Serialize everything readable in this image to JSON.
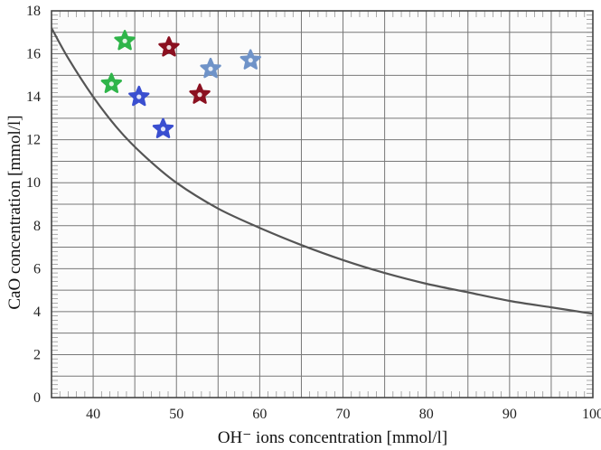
{
  "chart_data": {
    "type": "scatter",
    "xlabel": "OH⁻ ions concentration [mmol/l]",
    "ylabel": "CaO concentration [mmol/l]",
    "xlim": [
      35,
      100
    ],
    "ylim": [
      0,
      18
    ],
    "x_ticks": [
      40,
      50,
      60,
      70,
      80,
      90,
      100
    ],
    "y_ticks": [
      0,
      2,
      4,
      6,
      8,
      10,
      12,
      14,
      16,
      18
    ],
    "grid": true,
    "curve": {
      "color": "#555555",
      "x": [
        35,
        37,
        40,
        43,
        46,
        50,
        55,
        60,
        65,
        70,
        75,
        80,
        85,
        90,
        95,
        100
      ],
      "y": [
        17.2,
        15.8,
        14.0,
        12.5,
        11.3,
        10.0,
        8.8,
        7.9,
        7.1,
        6.4,
        5.8,
        5.3,
        4.9,
        4.5,
        4.2,
        3.9
      ]
    },
    "points": [
      {
        "x": 43.8,
        "y": 16.6,
        "color": "#2fb54a"
      },
      {
        "x": 42.2,
        "y": 14.6,
        "color": "#2fb54a"
      },
      {
        "x": 49.1,
        "y": 16.3,
        "color": "#8b1020"
      },
      {
        "x": 52.8,
        "y": 14.1,
        "color": "#8b1020"
      },
      {
        "x": 45.5,
        "y": 14.0,
        "color": "#3a4fd0"
      },
      {
        "x": 48.4,
        "y": 12.5,
        "color": "#3a4fd0"
      },
      {
        "x": 54.1,
        "y": 15.3,
        "color": "#6f93c8"
      },
      {
        "x": 58.9,
        "y": 15.7,
        "color": "#6f93c8"
      }
    ]
  }
}
